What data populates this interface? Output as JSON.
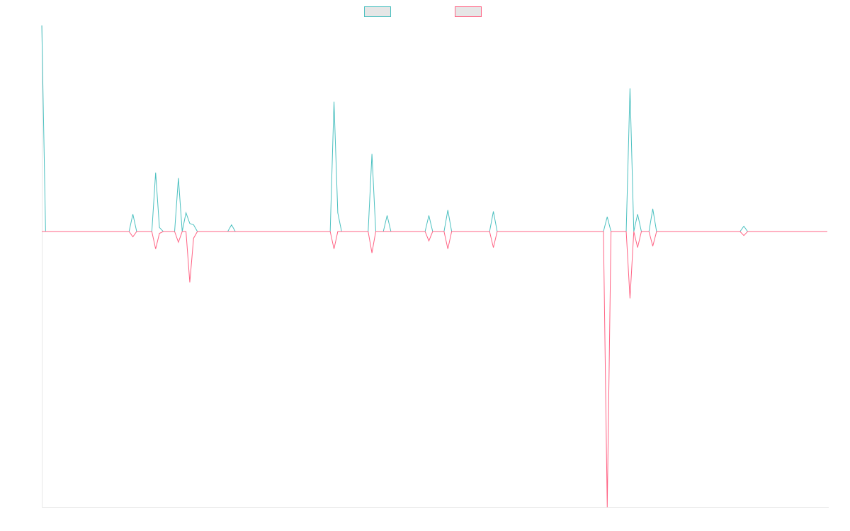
{
  "chart_data": {
    "type": "line",
    "title": "",
    "xlabel": "",
    "ylabel": "",
    "grid": false,
    "legend_placement": "top-center",
    "ylim": [
      -100,
      80
    ],
    "n": 208,
    "series": [
      {
        "name": "",
        "color": "#4bc0c0",
        "points": [
          [
            0,
            77
          ],
          [
            1,
            0
          ],
          [
            24,
            6.5
          ],
          [
            25,
            0
          ],
          [
            30,
            22
          ],
          [
            31,
            1.5
          ],
          [
            32,
            0
          ],
          [
            36,
            20
          ],
          [
            37,
            0
          ],
          [
            38,
            7
          ],
          [
            39,
            3
          ],
          [
            40,
            2.5
          ],
          [
            41,
            0
          ],
          [
            50,
            2.5
          ],
          [
            51,
            0
          ],
          [
            77,
            48.5
          ],
          [
            78,
            7
          ],
          [
            79,
            0
          ],
          [
            87,
            29
          ],
          [
            88,
            0
          ],
          [
            91,
            6
          ],
          [
            92,
            0
          ],
          [
            102,
            6
          ],
          [
            103,
            0
          ],
          [
            107,
            8
          ],
          [
            108,
            0
          ],
          [
            119,
            7.5
          ],
          [
            120,
            0
          ],
          [
            149,
            5.5
          ],
          [
            150,
            0
          ],
          [
            155,
            53.5
          ],
          [
            156,
            0
          ],
          [
            157,
            6.5
          ],
          [
            158,
            0
          ],
          [
            161,
            8.5
          ],
          [
            162,
            0
          ],
          [
            185,
            2
          ],
          [
            186,
            0
          ],
          [
            207,
            0
          ]
        ]
      },
      {
        "name": "",
        "color": "#ff6384",
        "points": [
          [
            0,
            0
          ],
          [
            24,
            -2
          ],
          [
            25,
            0
          ],
          [
            30,
            -6.5
          ],
          [
            31,
            -0.7
          ],
          [
            32,
            0
          ],
          [
            36,
            -4
          ],
          [
            37,
            0
          ],
          [
            39,
            -19
          ],
          [
            40,
            -2.5
          ],
          [
            41,
            0
          ],
          [
            77,
            -6.5
          ],
          [
            78,
            0
          ],
          [
            87,
            -8
          ],
          [
            88,
            0
          ],
          [
            102,
            -3.5
          ],
          [
            103,
            0
          ],
          [
            107,
            -6.5
          ],
          [
            108,
            0
          ],
          [
            119,
            -6
          ],
          [
            120,
            0
          ],
          [
            149,
            -103
          ],
          [
            150,
            0
          ],
          [
            155,
            -25
          ],
          [
            156,
            0
          ],
          [
            157,
            -6
          ],
          [
            158,
            0
          ],
          [
            161,
            -5.5
          ],
          [
            162,
            0
          ],
          [
            185,
            -1.5
          ],
          [
            186,
            0
          ],
          [
            207,
            0
          ]
        ]
      }
    ]
  }
}
